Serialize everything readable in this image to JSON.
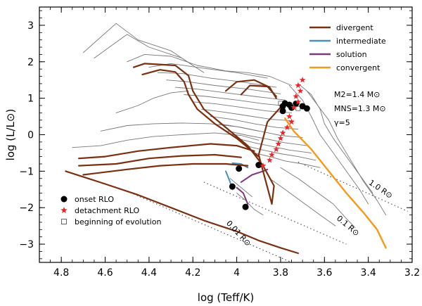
{
  "chart_data": {
    "type": "line",
    "xlabel": "log (T_eff/K)",
    "ylabel": "log (L/L_⊙)",
    "xlim": [
      4.9,
      3.2
    ],
    "ylim": [
      -3.5,
      3.5
    ],
    "x_reversed": true,
    "xticks": [
      "4.8",
      "4.6",
      "4.4",
      "4.2",
      "4",
      "3.8",
      "3.6",
      "3.4",
      "3.2"
    ],
    "yticks": [
      "−3",
      "−2",
      "−1",
      "0",
      "1",
      "2",
      "3"
    ],
    "legend_placement": "top-right",
    "series_legend": [
      {
        "name": "divergent",
        "color": "#7a3010"
      },
      {
        "name": "intermediate",
        "color": "#4a8fc0"
      },
      {
        "name": "solution",
        "color": "#7a3a7a"
      },
      {
        "name": "convergent",
        "color": "#f39a1c"
      }
    ],
    "annotations": [
      "M_2=1.4 M_⊙",
      "M_NS=1.3 M_⊙",
      "γ=5"
    ],
    "marker_legend": [
      {
        "label": "onset RLO",
        "symbol": "filled-circle",
        "color": "#000000"
      },
      {
        "label": "detachment RLO",
        "symbol": "star",
        "color": "#e8262b"
      },
      {
        "label": "beginning of evolution",
        "symbol": "open-square",
        "color": "#555555"
      }
    ],
    "radius_lines": [
      {
        "label": "0.01 R_⊙",
        "line": [
          [
            4.5,
            -1.55
          ],
          [
            3.75,
            -3.5
          ]
        ],
        "label_at": [
          4.0,
          -2.75
        ],
        "label_angle": 47
      },
      {
        "label": "0.1 R_⊙",
        "line": [
          [
            4.15,
            -1.3
          ],
          [
            3.5,
            -3.0
          ]
        ],
        "label_at": [
          3.5,
          -2.55
        ],
        "label_angle": 40
      },
      {
        "label": "1.0 R_⊙",
        "line": [
          [
            3.72,
            -0.75
          ],
          [
            3.22,
            -2.1
          ]
        ],
        "label_at": [
          3.35,
          -1.55
        ],
        "label_angle": 34
      }
    ],
    "tracks": {
      "divergent": [
        [
          [
            4.47,
            1.85
          ],
          [
            4.42,
            1.95
          ],
          [
            4.28,
            1.9
          ],
          [
            4.22,
            1.62
          ],
          [
            4.2,
            1.2
          ],
          [
            4.15,
            0.7
          ],
          [
            4.05,
            0.2
          ],
          [
            3.95,
            -0.3
          ],
          [
            3.88,
            -0.85
          ],
          [
            3.83,
            -1.4
          ],
          [
            3.84,
            -1.9
          ],
          [
            3.9,
            -0.55
          ],
          [
            3.86,
            0.35
          ],
          [
            3.8,
            0.75
          ]
        ],
        [
          [
            4.43,
            1.65
          ],
          [
            4.35,
            1.78
          ],
          [
            4.28,
            1.72
          ],
          [
            4.24,
            1.45
          ],
          [
            4.22,
            1.1
          ],
          [
            4.18,
            0.7
          ],
          [
            4.1,
            0.3
          ],
          [
            4.0,
            -0.1
          ],
          [
            3.9,
            -0.6
          ]
        ],
        [
          [
            4.05,
            1.2
          ],
          [
            4.0,
            1.45
          ],
          [
            3.92,
            1.5
          ],
          [
            3.85,
            1.3
          ],
          [
            3.82,
            1.0
          ]
        ],
        [
          [
            3.98,
            1.1
          ],
          [
            3.94,
            1.35
          ],
          [
            3.86,
            1.32
          ],
          [
            3.82,
            1.05
          ]
        ],
        [
          [
            4.72,
            -0.65
          ],
          [
            4.6,
            -0.6
          ],
          [
            4.45,
            -0.45
          ],
          [
            4.3,
            -0.35
          ],
          [
            4.12,
            -0.25
          ],
          [
            4.0,
            -0.3
          ],
          [
            3.92,
            -0.45
          ]
        ],
        [
          [
            4.72,
            -0.85
          ],
          [
            4.55,
            -0.8
          ],
          [
            4.4,
            -0.65
          ],
          [
            4.25,
            -0.58
          ],
          [
            4.1,
            -0.55
          ],
          [
            3.98,
            -0.62
          ]
        ],
        [
          [
            4.7,
            -1.1
          ],
          [
            4.5,
            -0.95
          ],
          [
            4.35,
            -0.85
          ],
          [
            4.2,
            -0.8
          ],
          [
            4.05,
            -0.8
          ],
          [
            3.95,
            -0.85
          ]
        ],
        [
          [
            4.78,
            -1.0
          ],
          [
            4.6,
            -1.35
          ],
          [
            4.45,
            -1.65
          ],
          [
            4.3,
            -2.0
          ],
          [
            4.15,
            -2.35
          ],
          [
            4.0,
            -2.65
          ],
          [
            3.9,
            -2.9
          ],
          [
            3.8,
            -3.1
          ],
          [
            3.72,
            -3.25
          ]
        ]
      ],
      "intermediate": [
        [
          [
            4.02,
            -0.78
          ],
          [
            3.98,
            -0.8
          ],
          [
            3.95,
            -0.9
          ]
        ],
        [
          [
            4.05,
            -1.0
          ],
          [
            4.03,
            -1.3
          ],
          [
            4.02,
            -1.5
          ]
        ]
      ],
      "solution": [
        [
          [
            3.98,
            -1.3
          ],
          [
            3.93,
            -1.1
          ],
          [
            3.88,
            -1.0
          ],
          [
            3.86,
            -0.95
          ]
        ],
        [
          [
            4.0,
            -1.45
          ],
          [
            3.97,
            -1.6
          ],
          [
            3.95,
            -1.9
          ]
        ]
      ],
      "convergent": [
        [
          [
            3.78,
            0.45
          ],
          [
            3.74,
            0.1
          ],
          [
            3.66,
            -0.4
          ],
          [
            3.58,
            -1.0
          ],
          [
            3.5,
            -1.6
          ],
          [
            3.42,
            -2.15
          ],
          [
            3.36,
            -2.6
          ],
          [
            3.32,
            -3.1
          ]
        ]
      ],
      "other": [
        [
          [
            4.7,
            2.25
          ],
          [
            4.55,
            3.05
          ],
          [
            4.45,
            2.6
          ],
          [
            4.3,
            2.3
          ],
          [
            4.2,
            1.9
          ]
        ],
        [
          [
            4.65,
            2.1
          ],
          [
            4.5,
            2.75
          ],
          [
            4.4,
            2.4
          ],
          [
            4.25,
            2.1
          ],
          [
            4.15,
            1.7
          ]
        ],
        [
          [
            4.5,
            2.0
          ],
          [
            4.42,
            2.2
          ],
          [
            4.3,
            2.15
          ],
          [
            4.18,
            1.9
          ],
          [
            4.05,
            1.75
          ],
          [
            3.95,
            1.7
          ],
          [
            3.85,
            1.6
          ],
          [
            3.75,
            1.35
          ]
        ],
        [
          [
            4.4,
            1.85
          ],
          [
            4.3,
            1.95
          ],
          [
            4.15,
            1.82
          ],
          [
            4.0,
            1.7
          ],
          [
            3.86,
            1.55
          ]
        ],
        [
          [
            4.36,
            1.7
          ],
          [
            4.25,
            1.68
          ],
          [
            4.12,
            1.55
          ],
          [
            3.98,
            1.45
          ],
          [
            3.82,
            1.3
          ]
        ],
        [
          [
            4.32,
            1.5
          ],
          [
            4.22,
            1.45
          ],
          [
            4.1,
            1.35
          ],
          [
            3.95,
            1.25
          ],
          [
            3.8,
            1.12
          ]
        ],
        [
          [
            4.28,
            1.3
          ],
          [
            4.18,
            1.25
          ],
          [
            4.05,
            1.15
          ],
          [
            3.92,
            1.05
          ],
          [
            3.78,
            0.95
          ]
        ],
        [
          [
            4.24,
            1.1
          ],
          [
            4.14,
            1.05
          ],
          [
            4.0,
            0.95
          ],
          [
            3.88,
            0.85
          ],
          [
            3.76,
            0.78
          ]
        ],
        [
          [
            4.2,
            0.9
          ],
          [
            4.1,
            0.85
          ],
          [
            3.98,
            0.75
          ],
          [
            3.86,
            0.65
          ],
          [
            3.75,
            0.6
          ]
        ],
        [
          [
            4.16,
            0.7
          ],
          [
            4.06,
            0.62
          ],
          [
            3.95,
            0.52
          ],
          [
            3.84,
            0.42
          ],
          [
            3.74,
            0.38
          ]
        ],
        [
          [
            4.12,
            0.5
          ],
          [
            4.02,
            0.42
          ],
          [
            3.92,
            0.3
          ],
          [
            3.82,
            0.2
          ],
          [
            3.72,
            0.15
          ]
        ],
        [
          [
            4.08,
            0.3
          ],
          [
            3.98,
            0.2
          ],
          [
            3.88,
            0.08
          ],
          [
            3.8,
            -0.02
          ],
          [
            3.7,
            -0.08
          ]
        ],
        [
          [
            4.04,
            0.1
          ],
          [
            3.95,
            -0.02
          ],
          [
            3.86,
            -0.12
          ],
          [
            3.78,
            -0.22
          ],
          [
            3.68,
            -0.3
          ]
        ],
        [
          [
            4.0,
            -0.1
          ],
          [
            3.92,
            -0.22
          ],
          [
            3.84,
            -0.32
          ],
          [
            3.76,
            -0.42
          ],
          [
            3.66,
            -0.5
          ]
        ],
        [
          [
            3.96,
            -0.3
          ],
          [
            3.88,
            -0.42
          ],
          [
            3.8,
            -0.52
          ],
          [
            3.72,
            -0.6
          ],
          [
            3.64,
            -0.7
          ]
        ],
        [
          [
            3.92,
            -0.5
          ],
          [
            3.85,
            -0.6
          ],
          [
            3.78,
            -0.72
          ],
          [
            3.7,
            -0.8
          ],
          [
            3.62,
            -0.9
          ]
        ],
        [
          [
            3.72,
            1.4
          ],
          [
            3.66,
            1.1
          ],
          [
            3.62,
            0.7
          ],
          [
            3.6,
            0.3
          ],
          [
            3.56,
            -0.1
          ],
          [
            3.5,
            -0.6
          ],
          [
            3.44,
            -1.1
          ],
          [
            3.38,
            -1.6
          ]
        ],
        [
          [
            3.76,
            1.35
          ],
          [
            3.7,
            0.95
          ],
          [
            3.66,
            0.5
          ],
          [
            3.62,
            0.0
          ],
          [
            3.56,
            -0.5
          ],
          [
            3.5,
            -1.0
          ],
          [
            3.44,
            -1.5
          ],
          [
            3.4,
            -1.9
          ]
        ],
        [
          [
            3.68,
            1.2
          ],
          [
            3.63,
            0.8
          ],
          [
            3.58,
            0.4
          ],
          [
            3.54,
            -0.1
          ],
          [
            3.48,
            -0.7
          ],
          [
            3.42,
            -1.3
          ],
          [
            3.36,
            -1.8
          ],
          [
            3.32,
            -2.2
          ]
        ],
        [
          [
            3.8,
            -0.9
          ],
          [
            3.72,
            -1.2
          ],
          [
            3.64,
            -1.55
          ],
          [
            3.56,
            -1.9
          ],
          [
            3.5,
            -2.3
          ],
          [
            3.46,
            -2.55
          ]
        ],
        [
          [
            3.85,
            -1.2
          ],
          [
            3.78,
            -1.5
          ],
          [
            3.7,
            -1.85
          ],
          [
            3.62,
            -2.2
          ],
          [
            3.55,
            -2.5
          ]
        ],
        [
          [
            4.75,
            -0.35
          ],
          [
            4.62,
            -0.3
          ],
          [
            4.5,
            -0.15
          ],
          [
            4.38,
            -0.05
          ],
          [
            4.25,
            0.0
          ],
          [
            4.1,
            0.05
          ],
          [
            3.98,
            -0.02
          ],
          [
            3.9,
            -0.15
          ]
        ],
        [
          [
            4.62,
            0.1
          ],
          [
            4.5,
            0.25
          ],
          [
            4.38,
            0.3
          ],
          [
            4.25,
            0.32
          ],
          [
            4.12,
            0.3
          ],
          [
            4.0,
            0.22
          ],
          [
            3.9,
            0.1
          ]
        ],
        [
          [
            4.55,
            0.6
          ],
          [
            4.45,
            0.8
          ],
          [
            4.38,
            1.0
          ],
          [
            4.3,
            1.15
          ],
          [
            4.22,
            1.2
          ]
        ],
        [
          [
            4.0,
            -1.6
          ],
          [
            3.96,
            -1.8
          ],
          [
            3.92,
            -2.05
          ],
          [
            3.88,
            -2.2
          ]
        ],
        [
          [
            4.03,
            -1.2
          ],
          [
            3.99,
            -1.4
          ],
          [
            3.96,
            -1.55
          ],
          [
            3.93,
            -1.7
          ]
        ]
      ]
    },
    "onset_rlo_points": [
      [
        3.96,
        -1.98
      ],
      [
        4.02,
        -1.42
      ],
      [
        3.99,
        -0.93
      ],
      [
        3.9,
        -0.83
      ],
      [
        3.79,
        0.78
      ],
      [
        3.78,
        0.86
      ],
      [
        3.76,
        0.82
      ],
      [
        3.75,
        0.74
      ],
      [
        3.7,
        0.78
      ],
      [
        3.68,
        0.72
      ],
      [
        3.79,
        0.65
      ],
      [
        3.73,
        0.85
      ]
    ],
    "detachment_rlo_points": [
      [
        3.7,
        1.5
      ],
      [
        3.72,
        1.35
      ],
      [
        3.71,
        1.2
      ],
      [
        3.73,
        1.05
      ],
      [
        3.72,
        0.9
      ],
      [
        3.74,
        0.75
      ],
      [
        3.76,
        0.5
      ],
      [
        3.75,
        0.35
      ],
      [
        3.77,
        0.2
      ],
      [
        3.79,
        0.05
      ],
      [
        3.8,
        -0.1
      ],
      [
        3.81,
        -0.25
      ],
      [
        3.82,
        -0.4
      ],
      [
        3.84,
        -0.55
      ],
      [
        3.85,
        -0.7
      ],
      [
        3.88,
        -0.85
      ]
    ],
    "beginning_points": [
      [
        3.8,
        0.86
      ],
      [
        3.72,
        0.72
      ]
    ]
  }
}
